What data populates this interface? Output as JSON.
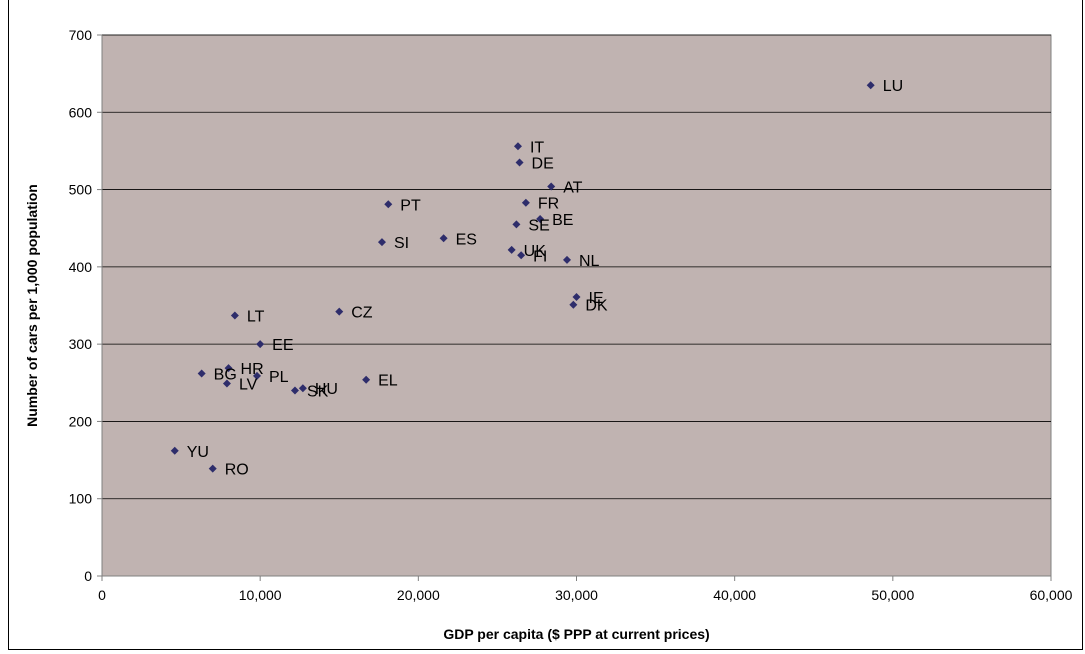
{
  "chart_data": {
    "type": "scatter",
    "title": "",
    "xlabel": "GDP per capita ($ PPP at current prices)",
    "ylabel": "Number of cars per 1,000 population",
    "xlim": [
      0,
      60000
    ],
    "ylim": [
      0,
      700
    ],
    "x_ticks": [
      0,
      10000,
      20000,
      30000,
      40000,
      50000,
      60000
    ],
    "x_tick_labels": [
      "0",
      "10,000",
      "20,000",
      "30,000",
      "40,000",
      "50,000",
      "60,000"
    ],
    "y_ticks": [
      0,
      100,
      200,
      300,
      400,
      500,
      600,
      700
    ],
    "y_tick_labels": [
      "0",
      "100",
      "200",
      "300",
      "400",
      "500",
      "600",
      "700"
    ],
    "grid": "horizontal",
    "legend": "none",
    "colors": {
      "plot_background": "#c0b3b1",
      "marker": "#2e2d6b",
      "grid": "#000000",
      "axis": "#808080"
    },
    "points": [
      {
        "label": "LU",
        "x": 48600,
        "y": 635
      },
      {
        "label": "IT",
        "x": 26300,
        "y": 556
      },
      {
        "label": "DE",
        "x": 26400,
        "y": 535
      },
      {
        "label": "AT",
        "x": 28400,
        "y": 504
      },
      {
        "label": "FR",
        "x": 26800,
        "y": 483
      },
      {
        "label": "PT",
        "x": 18100,
        "y": 481
      },
      {
        "label": "BE",
        "x": 27700,
        "y": 462
      },
      {
        "label": "SE",
        "x": 26200,
        "y": 455
      },
      {
        "label": "ES",
        "x": 21600,
        "y": 437
      },
      {
        "label": "SI",
        "x": 17700,
        "y": 432
      },
      {
        "label": "UK",
        "x": 25900,
        "y": 422
      },
      {
        "label": "FI",
        "x": 26500,
        "y": 415
      },
      {
        "label": "NL",
        "x": 29400,
        "y": 409
      },
      {
        "label": "IE",
        "x": 30000,
        "y": 361
      },
      {
        "label": "DK",
        "x": 29800,
        "y": 351
      },
      {
        "label": "CZ",
        "x": 15000,
        "y": 342
      },
      {
        "label": "LT",
        "x": 8400,
        "y": 337
      },
      {
        "label": "EE",
        "x": 10000,
        "y": 300
      },
      {
        "label": "HR",
        "x": 8000,
        "y": 269
      },
      {
        "label": "BG",
        "x": 6300,
        "y": 262
      },
      {
        "label": "PL",
        "x": 9800,
        "y": 259
      },
      {
        "label": "EL",
        "x": 16700,
        "y": 254
      },
      {
        "label": "LV",
        "x": 7900,
        "y": 249
      },
      {
        "label": "HU",
        "x": 12700,
        "y": 243
      },
      {
        "label": "SK",
        "x": 12200,
        "y": 240
      },
      {
        "label": "YU",
        "x": 4600,
        "y": 162
      },
      {
        "label": "RO",
        "x": 7000,
        "y": 139
      }
    ]
  }
}
